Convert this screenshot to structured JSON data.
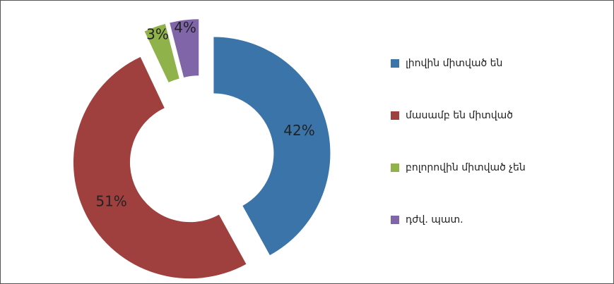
{
  "chart_data": {
    "type": "donut",
    "categories": [
      "լիովին միտված են",
      "մասամբ են միտված",
      "բոլորովին միտված չեն",
      "դժվ. պատ."
    ],
    "values": [
      42,
      51,
      3,
      4
    ],
    "value_labels": [
      "42%",
      "51%",
      "3%",
      "4%"
    ],
    "colors": [
      "#3a74a8",
      "#a0403e",
      "#8fb24a",
      "#8066a8"
    ],
    "legend": "right"
  }
}
